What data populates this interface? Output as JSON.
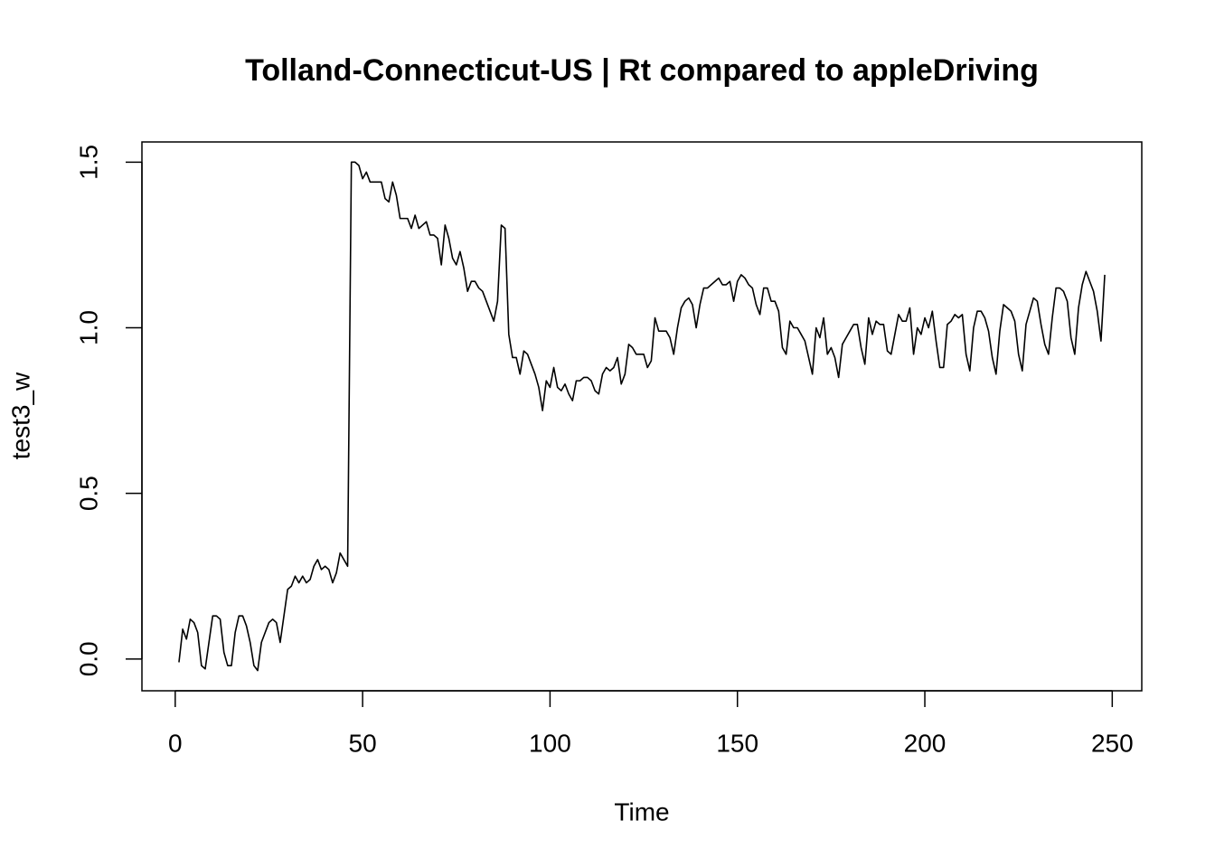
{
  "chart_data": {
    "type": "line",
    "title": "Tolland-Connecticut-US | Rt compared to appleDriving",
    "xlabel": "Time",
    "ylabel": "test3_w",
    "color": "#000000",
    "x": [
      1,
      2,
      3,
      4,
      5,
      6,
      7,
      8,
      9,
      10,
      11,
      12,
      13,
      14,
      15,
      16,
      17,
      18,
      19,
      20,
      21,
      22,
      23,
      24,
      25,
      26,
      27,
      28,
      29,
      30,
      31,
      32,
      33,
      34,
      35,
      36,
      37,
      38,
      39,
      40,
      41,
      42,
      43,
      44,
      45,
      46,
      47,
      48,
      49,
      50,
      51,
      52,
      53,
      54,
      55,
      56,
      57,
      58,
      59,
      60,
      61,
      62,
      63,
      64,
      65,
      66,
      67,
      68,
      69,
      70,
      71,
      72,
      73,
      74,
      75,
      76,
      77,
      78,
      79,
      80,
      81,
      82,
      83,
      84,
      85,
      86,
      87,
      88,
      89,
      90,
      91,
      92,
      93,
      94,
      95,
      96,
      97,
      98,
      99,
      100,
      101,
      102,
      103,
      104,
      105,
      106,
      107,
      108,
      109,
      110,
      111,
      112,
      113,
      114,
      115,
      116,
      117,
      118,
      119,
      120,
      121,
      122,
      123,
      124,
      125,
      126,
      127,
      128,
      129,
      130,
      131,
      132,
      133,
      134,
      135,
      136,
      137,
      138,
      139,
      140,
      141,
      142,
      143,
      144,
      145,
      146,
      147,
      148,
      149,
      150,
      151,
      152,
      153,
      154,
      155,
      156,
      157,
      158,
      159,
      160,
      161,
      162,
      163,
      164,
      165,
      166,
      167,
      168,
      169,
      170,
      171,
      172,
      173,
      174,
      175,
      176,
      177,
      178,
      179,
      180,
      181,
      182,
      183,
      184,
      185,
      186,
      187,
      188,
      189,
      190,
      191,
      192,
      193,
      194,
      195,
      196,
      197,
      198,
      199,
      200,
      201,
      202,
      203,
      204,
      205,
      206,
      207,
      208,
      209,
      210,
      211,
      212,
      213,
      214,
      215,
      216,
      217,
      218,
      219,
      220,
      221,
      222,
      223,
      224,
      225,
      226,
      227,
      228,
      229,
      230,
      231,
      232,
      233,
      234,
      235,
      236,
      237,
      238,
      239,
      240,
      241,
      242,
      243,
      244,
      245,
      246,
      247,
      248
    ],
    "values": [
      -0.01,
      0.09,
      0.06,
      0.12,
      0.11,
      0.08,
      -0.02,
      -0.03,
      0.05,
      0.13,
      0.13,
      0.12,
      0.02,
      -0.02,
      -0.02,
      0.08,
      0.13,
      0.13,
      0.1,
      0.05,
      -0.02,
      -0.035,
      0.05,
      0.08,
      0.11,
      0.12,
      0.11,
      0.05,
      0.13,
      0.21,
      0.22,
      0.25,
      0.23,
      0.25,
      0.23,
      0.24,
      0.28,
      0.3,
      0.27,
      0.28,
      0.27,
      0.23,
      0.26,
      0.32,
      0.3,
      0.28,
      1.5,
      1.5,
      1.49,
      1.45,
      1.47,
      1.44,
      1.44,
      1.44,
      1.44,
      1.39,
      1.38,
      1.44,
      1.4,
      1.33,
      1.33,
      1.33,
      1.3,
      1.34,
      1.3,
      1.31,
      1.32,
      1.28,
      1.28,
      1.27,
      1.19,
      1.31,
      1.27,
      1.21,
      1.19,
      1.23,
      1.18,
      1.11,
      1.14,
      1.14,
      1.12,
      1.11,
      1.08,
      1.05,
      1.02,
      1.08,
      1.31,
      1.3,
      0.98,
      0.91,
      0.91,
      0.86,
      0.93,
      0.92,
      0.89,
      0.86,
      0.82,
      0.75,
      0.84,
      0.82,
      0.88,
      0.82,
      0.81,
      0.83,
      0.8,
      0.78,
      0.84,
      0.84,
      0.85,
      0.85,
      0.84,
      0.81,
      0.8,
      0.86,
      0.88,
      0.87,
      0.88,
      0.91,
      0.83,
      0.86,
      0.95,
      0.94,
      0.92,
      0.92,
      0.92,
      0.88,
      0.9,
      1.03,
      0.99,
      0.99,
      0.99,
      0.97,
      0.92,
      1.0,
      1.06,
      1.08,
      1.09,
      1.07,
      1.0,
      1.07,
      1.12,
      1.12,
      1.13,
      1.14,
      1.15,
      1.13,
      1.13,
      1.14,
      1.08,
      1.14,
      1.16,
      1.15,
      1.13,
      1.12,
      1.07,
      1.04,
      1.12,
      1.12,
      1.08,
      1.08,
      1.05,
      0.94,
      0.92,
      1.02,
      1.0,
      1.0,
      0.98,
      0.96,
      0.91,
      0.86,
      1.0,
      0.97,
      1.03,
      0.92,
      0.94,
      0.91,
      0.85,
      0.95,
      0.97,
      0.99,
      1.01,
      1.01,
      0.94,
      0.89,
      1.03,
      0.98,
      1.02,
      1.01,
      1.01,
      0.93,
      0.92,
      0.98,
      1.04,
      1.02,
      1.02,
      1.06,
      0.92,
      1.0,
      0.98,
      1.03,
      1.0,
      1.05,
      0.96,
      0.88,
      0.88,
      1.01,
      1.02,
      1.04,
      1.03,
      1.04,
      0.92,
      0.87,
      1.0,
      1.05,
      1.05,
      1.03,
      0.99,
      0.91,
      0.86,
      0.99,
      1.07,
      1.06,
      1.05,
      1.02,
      0.92,
      0.87,
      1.01,
      1.05,
      1.09,
      1.08,
      1.01,
      0.95,
      0.92,
      1.03,
      1.12,
      1.12,
      1.11,
      1.08,
      0.97,
      0.92,
      1.06,
      1.13,
      1.17,
      1.14,
      1.11,
      1.05,
      0.96,
      1.16
    ],
    "xlim": [
      -8.88,
      257.88
    ],
    "ylim": [
      -0.096,
      1.561
    ],
    "xticks": [
      0,
      50,
      100,
      150,
      200,
      250
    ],
    "yticks": [
      {
        "value": 0,
        "label": "0.0"
      },
      0.5,
      {
        "value": 1,
        "label": "1.0"
      },
      1.5
    ]
  }
}
